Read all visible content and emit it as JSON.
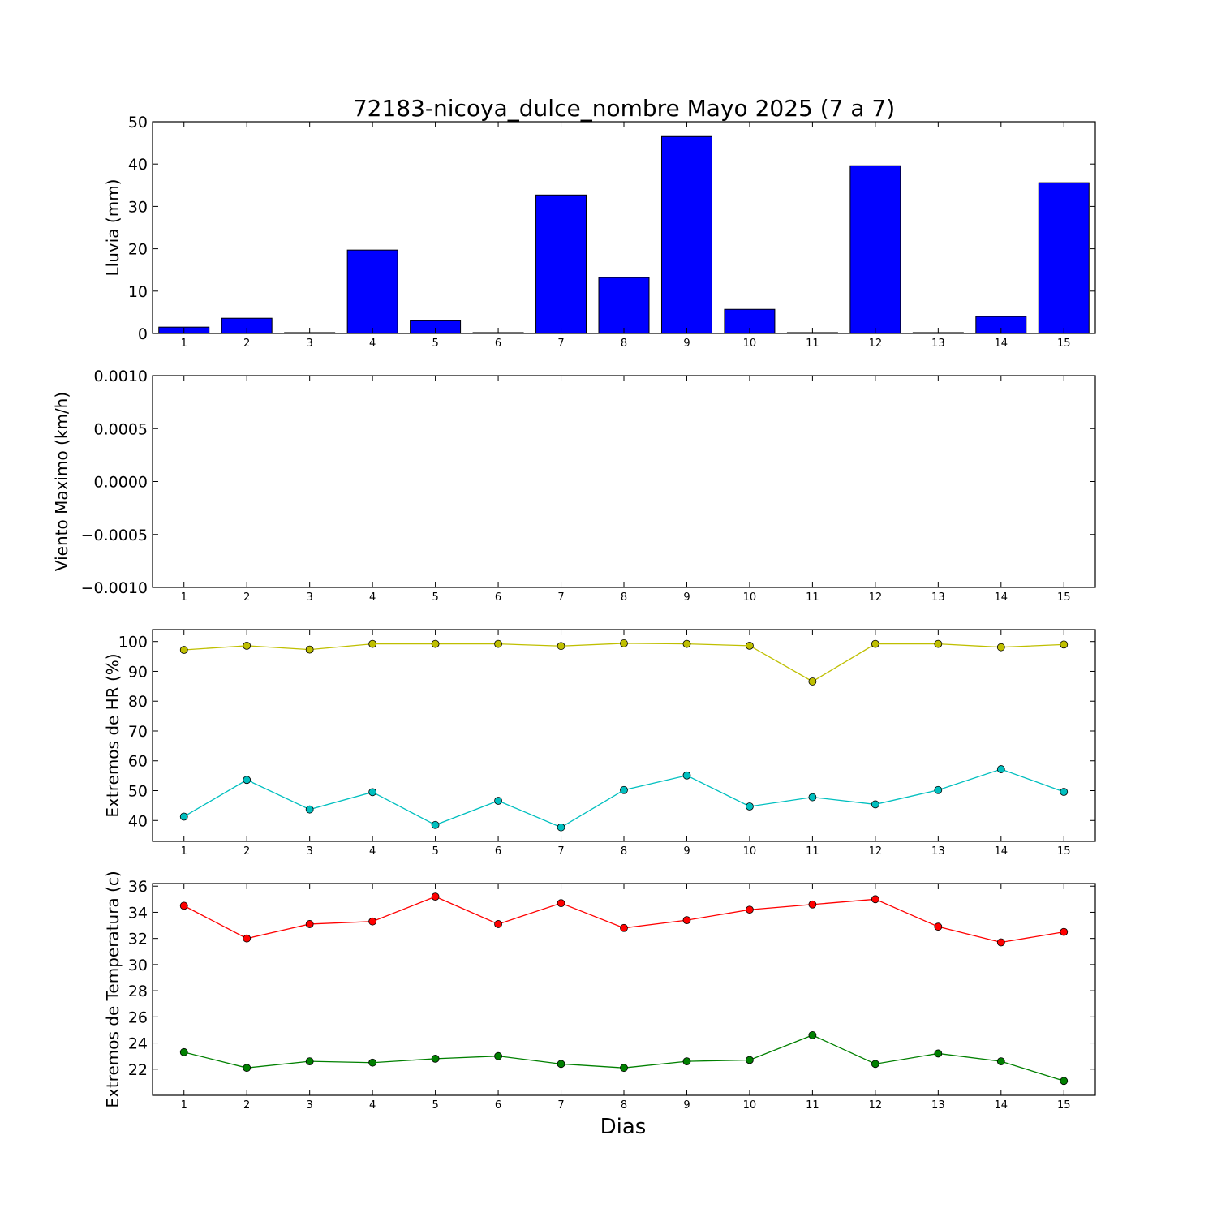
{
  "chart_data": {
    "title": "72183-nicoya_dulce_nombre Mayo 2025  (7 a 7)",
    "xlabel": "Dias",
    "days": [
      1,
      2,
      3,
      4,
      5,
      6,
      7,
      8,
      9,
      10,
      11,
      12,
      13,
      14,
      15
    ],
    "panels": [
      {
        "id": "lluvia",
        "type": "bar",
        "ylabel": "Lluvia (mm)",
        "ylim": [
          0,
          50
        ],
        "yticks": [
          "0",
          "10",
          "20",
          "30",
          "40",
          "50"
        ],
        "ytick_values": [
          0,
          10,
          20,
          30,
          40,
          50
        ],
        "series": [
          {
            "values": [
              1.5,
              3.6,
              0.2,
              19.7,
              3.0,
              0.2,
              32.7,
              13.2,
              46.5,
              5.7,
              0.2,
              39.6,
              0.2,
              4.0,
              35.6
            ],
            "color": "#0000ff"
          }
        ]
      },
      {
        "id": "viento",
        "type": "line",
        "ylabel": "Viento Maximo (km/h)",
        "ylim": [
          -0.001,
          0.001
        ],
        "yticks": [
          "−0.0010",
          "−0.0005",
          "0.0000",
          "0.0005",
          "0.0010"
        ],
        "ytick_values": [
          -0.001,
          -0.0005,
          0.0,
          0.0005,
          0.001
        ],
        "series": []
      },
      {
        "id": "humedad",
        "type": "line",
        "ylabel": "Extremos de HR (%)",
        "ylim": [
          33,
          104
        ],
        "yticks": [
          "40",
          "50",
          "60",
          "70",
          "80",
          "90",
          "100"
        ],
        "ytick_values": [
          40,
          50,
          60,
          70,
          80,
          90,
          100
        ],
        "series": [
          {
            "values": [
              97.2,
              98.6,
              97.3,
              99.2,
              99.2,
              99.2,
              98.5,
              99.4,
              99.2,
              98.6,
              86.6,
              99.2,
              99.2,
              98.1,
              99.0
            ],
            "color": "#bfbf00"
          },
          {
            "values": [
              41.3,
              53.6,
              43.7,
              49.5,
              38.5,
              46.6,
              37.7,
              50.2,
              55.1,
              44.7,
              47.8,
              45.4,
              50.2,
              57.2,
              49.6
            ],
            "color": "#00bfbf"
          }
        ]
      },
      {
        "id": "temperatura",
        "type": "line",
        "ylabel": "Extremos de Temperatura (c)",
        "ylim": [
          20.0,
          36.2
        ],
        "yticks": [
          "22",
          "24",
          "26",
          "28",
          "30",
          "32",
          "34",
          "36"
        ],
        "ytick_values": [
          22,
          24,
          26,
          28,
          30,
          32,
          34,
          36
        ],
        "series": [
          {
            "values": [
              34.5,
              32.0,
              33.1,
              33.3,
              35.2,
              33.1,
              34.7,
              32.8,
              33.4,
              34.2,
              34.6,
              35.0,
              32.9,
              31.7,
              32.5
            ],
            "color": "#ff0000"
          },
          {
            "values": [
              23.3,
              22.1,
              22.6,
              22.5,
              22.8,
              23.0,
              22.4,
              22.1,
              22.6,
              22.7,
              24.6,
              22.4,
              23.2,
              22.6,
              21.1
            ],
            "color": "#008000"
          }
        ]
      }
    ]
  }
}
